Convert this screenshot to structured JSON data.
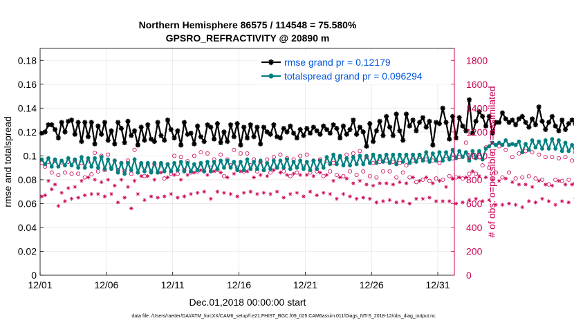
{
  "chart_data": {
    "type": "line",
    "title_line1": "Northern Hemisphere 86575 / 114548 = 75.580%",
    "title_line2": "GPSRO_REFRACTIVITY @ 20890 m",
    "xlabel": "Dec.01,2018 00:00:00 start",
    "ylabel_left": "rmse and totalspread",
    "ylabel_right": "# of obs: o=possible; ×=assimilated",
    "footnote": "data file: /Users/raeder/DAI/ATM_forcXX/CAM6_setup/f.e21.FHIST_BGC.f09_025.CAM6assim.011/Diags_NTrS_2018-12/obs_diag_output.nc",
    "xlim": [
      0,
      31.25
    ],
    "ylim_left": [
      0,
      0.19
    ],
    "ylim_right": [
      0,
      1900
    ],
    "x_ticks": [
      0,
      5,
      10,
      15,
      20,
      25,
      30
    ],
    "x_tick_labels": [
      "12/01",
      "12/06",
      "12/11",
      "12/16",
      "12/21",
      "12/26",
      "12/31"
    ],
    "y_ticks_left": [
      0,
      0.02,
      0.04,
      0.06,
      0.08,
      0.1,
      0.12,
      0.14,
      0.16,
      0.18
    ],
    "y_tick_labels_left": [
      "0",
      "0.02",
      "0.04",
      "0.06",
      "0.08",
      "0.1",
      "0.12",
      "0.14",
      "0.16",
      "0.18"
    ],
    "y_ticks_right": [
      0,
      200,
      400,
      600,
      800,
      1000,
      1200,
      1400,
      1600,
      1800
    ],
    "y_tick_labels_right": [
      "0",
      "200",
      "400",
      "600",
      "800",
      "1000",
      "1200",
      "1400",
      "1600",
      "1800"
    ],
    "x_step_days": 0.25,
    "series": [
      {
        "name": "rmse grand pr = 0.12179",
        "color": "#000000",
        "marker": "star",
        "values": [
          0.119,
          0.12,
          0.126,
          0.126,
          0.122,
          0.115,
          0.128,
          0.12,
          0.129,
          0.13,
          0.118,
          0.128,
          0.112,
          0.128,
          0.116,
          0.128,
          0.11,
          0.125,
          0.118,
          0.128,
          0.113,
          0.121,
          0.11,
          0.128,
          0.123,
          0.111,
          0.129,
          0.117,
          0.121,
          0.109,
          0.124,
          0.113,
          0.126,
          0.114,
          0.112,
          0.128,
          0.117,
          0.113,
          0.13,
          0.122,
          0.115,
          0.121,
          0.109,
          0.128,
          0.118,
          0.119,
          0.11,
          0.125,
          0.116,
          0.112,
          0.126,
          0.124,
          0.114,
          0.127,
          0.111,
          0.12,
          0.112,
          0.126,
          0.116,
          0.127,
          0.109,
          0.124,
          0.115,
          0.126,
          0.116,
          0.124,
          0.11,
          0.124,
          0.12,
          0.118,
          0.126,
          0.116,
          0.115,
          0.123,
          0.12,
          0.125,
          0.119,
          0.115,
          0.122,
          0.117,
          0.123,
          0.119,
          0.124,
          0.121,
          0.118,
          0.125,
          0.122,
          0.119,
          0.126,
          0.123,
          0.115,
          0.125,
          0.118,
          0.122,
          0.13,
          0.118,
          0.124,
          0.12,
          0.108,
          0.127,
          0.112,
          0.121,
          0.129,
          0.117,
          0.133,
          0.124,
          0.117,
          0.135,
          0.121,
          0.113,
          0.135,
          0.125,
          0.13,
          0.121,
          0.128,
          0.132,
          0.124,
          0.129,
          0.109,
          0.128,
          0.127,
          0.14,
          0.128,
          0.114,
          0.133,
          0.115,
          0.132,
          0.125,
          0.121,
          0.147,
          0.119,
          0.129,
          0.137,
          0.133,
          0.125,
          0.133,
          0.119,
          0.128,
          0.128,
          0.136,
          0.131,
          0.128,
          0.13,
          0.126,
          0.131,
          0.133,
          0.128,
          0.124,
          0.131,
          0.126,
          0.141,
          0.129,
          0.122,
          0.128,
          0.133,
          0.125,
          0.121,
          0.13,
          0.122,
          0.127,
          0.13,
          0.127,
          0.133,
          0.128,
          0.129,
          0.119,
          0.13,
          0.117,
          0.131,
          0.121,
          0.126,
          0.124,
          0.131,
          0.127,
          0.113,
          0.125,
          0.118,
          0.118,
          0.125,
          0.127,
          0.118,
          0.127,
          0.12,
          0.113,
          0.125,
          0.118,
          0.12
        ]
      },
      {
        "name": "totalspread grand pr = 0.096294",
        "color": "#008080",
        "marker": "circle",
        "values": [
          0.097,
          0.093,
          0.098,
          0.091,
          0.097,
          0.091,
          0.096,
          0.092,
          0.098,
          0.092,
          0.097,
          0.09,
          0.099,
          0.09,
          0.098,
          0.091,
          0.098,
          0.09,
          0.099,
          0.089,
          0.097,
          0.089,
          0.096,
          0.086,
          0.094,
          0.085,
          0.094,
          0.088,
          0.097,
          0.086,
          0.094,
          0.087,
          0.094,
          0.086,
          0.094,
          0.086,
          0.094,
          0.087,
          0.093,
          0.087,
          0.094,
          0.088,
          0.095,
          0.087,
          0.094,
          0.087,
          0.093,
          0.088,
          0.094,
          0.087,
          0.095,
          0.087,
          0.095,
          0.089,
          0.096,
          0.09,
          0.096,
          0.09,
          0.095,
          0.088,
          0.095,
          0.088,
          0.097,
          0.089,
          0.095,
          0.089,
          0.096,
          0.088,
          0.094,
          0.089,
          0.096,
          0.09,
          0.096,
          0.09,
          0.097,
          0.089,
          0.095,
          0.09,
          0.096,
          0.089,
          0.095,
          0.088,
          0.096,
          0.089,
          0.096,
          0.09,
          0.099,
          0.093,
          0.101,
          0.093,
          0.1,
          0.092,
          0.098,
          0.092,
          0.099,
          0.093,
          0.1,
          0.093,
          0.1,
          0.094,
          0.101,
          0.094,
          0.1,
          0.095,
          0.101,
          0.094,
          0.101,
          0.093,
          0.101,
          0.095,
          0.101,
          0.094,
          0.101,
          0.095,
          0.101,
          0.096,
          0.103,
          0.095,
          0.102,
          0.096,
          0.103,
          0.096,
          0.103,
          0.097,
          0.105,
          0.098,
          0.104,
          0.099,
          0.103,
          0.096,
          0.104,
          0.098,
          0.104,
          0.097,
          0.106,
          0.108,
          0.111,
          0.109,
          0.111,
          0.109,
          0.113,
          0.109,
          0.11,
          0.109,
          0.112,
          0.103,
          0.11,
          0.105,
          0.113,
          0.107,
          0.112,
          0.106,
          0.113,
          0.106,
          0.114,
          0.106,
          0.113,
          0.104,
          0.111,
          0.104,
          0.109,
          0.103,
          0.106,
          0.102,
          0.107,
          0.1,
          0.108,
          0.101,
          0.11,
          0.1,
          0.109,
          0.098,
          0.108,
          0.1,
          0.11,
          0.099,
          0.109,
          0.099,
          0.109,
          0.1,
          0.111,
          0.1,
          0.11,
          0.101,
          0.105,
          0.104,
          0.106,
          0.104,
          0.105,
          0.104,
          0.104,
          0.102,
          0.101
        ]
      },
      {
        "name": "obs possible",
        "color": "#cc0055",
        "marker": "open-circle",
        "axis": "right",
        "values": [
          940,
          910,
          950,
          860,
          955,
          840,
          945,
          860,
          950,
          850,
          960,
          850,
          940,
          820,
          955,
          845,
          1025,
          870,
          1000,
          880,
          1010,
          900,
          960,
          880,
          940,
          870,
          960,
          850,
          1050,
          860,
          920,
          830,
          920,
          870,
          930,
          860,
          920,
          810,
          930,
          850,
          1000,
          850,
          990,
          880,
          955,
          860,
          1000,
          870,
          1030,
          870,
          1020,
          900,
          970,
          880,
          1010,
          830,
          970,
          920,
          1050,
          900,
          1020,
          870,
          1020,
          920,
          970,
          870,
          950,
          880,
          970,
          860,
          990,
          900,
          1010,
          870,
          980,
          830,
          970,
          860,
          1000,
          910,
          1010,
          860,
          960,
          870,
          970,
          830,
          960,
          870,
          940,
          840,
          990,
          830,
          1010,
          870,
          1020,
          840,
          1040,
          870,
          990,
          830,
          940,
          820,
          950,
          870,
          960,
          870,
          950,
          820,
          940,
          860,
          920,
          820,
          960,
          780,
          990,
          800,
          970,
          790,
          960,
          810,
          940,
          800,
          1000,
          830,
          980,
          820,
          990,
          810,
          1110,
          850,
          1010,
          850,
          1020,
          920,
          1070,
          900,
          1040,
          860,
          1080,
          820,
          1050,
          860,
          990,
          810,
          1020,
          820,
          1040,
          830,
          1030,
          810,
          1010,
          800,
          990,
          760,
          990,
          800,
          980,
          790,
          990,
          800,
          960,
          770,
          1000,
          810,
          960,
          780,
          1010,
          800,
          950,
          770,
          940,
          790,
          990,
          810,
          940,
          780,
          960,
          790,
          920,
          780,
          880,
          770,
          900,
          760,
          930,
          740,
          880,
          730,
          930,
          740,
          870,
          740
        ]
      },
      {
        "name": "obs assimilated",
        "color": "#cc0055",
        "marker": "asterisk",
        "axis": "right",
        "values": [
          660,
          670,
          790,
          720,
          760,
          580,
          690,
          620,
          730,
          640,
          740,
          650,
          790,
          670,
          820,
          680,
          800,
          680,
          780,
          660,
          800,
          680,
          750,
          610,
          800,
          650,
          740,
          560,
          790,
          680,
          830,
          630,
          830,
          660,
          800,
          650,
          860,
          660,
          820,
          680,
          840,
          650,
          800,
          660,
          840,
          680,
          860,
          690,
          880,
          700,
          840,
          640,
          870,
          700,
          860,
          690,
          820,
          680,
          850,
          660,
          870,
          690,
          870,
          700,
          820,
          680,
          840,
          690,
          830,
          680,
          880,
          700,
          860,
          650,
          840,
          680,
          850,
          690,
          840,
          660,
          840,
          700,
          830,
          670,
          860,
          690,
          840,
          680,
          790,
          640,
          820,
          680,
          810,
          660,
          770,
          640,
          790,
          650,
          760,
          640,
          750,
          610,
          770,
          620,
          770,
          630,
          760,
          610,
          780,
          620,
          770,
          600,
          820,
          640,
          790,
          640,
          820,
          650,
          770,
          620,
          790,
          620,
          740,
          620,
          810,
          600,
          820,
          610,
          820,
          630,
          870,
          640,
          830,
          620,
          820,
          630,
          800,
          590,
          790,
          590,
          810,
          600,
          780,
          590,
          760,
          570,
          760,
          620,
          740,
          610,
          790,
          640,
          760,
          620,
          750,
          590,
          790,
          620,
          760,
          610,
          760,
          640,
          770,
          650,
          740,
          620,
          720,
          620,
          720,
          600,
          720,
          600,
          740,
          590,
          720,
          600,
          750,
          600,
          710,
          560,
          730,
          600,
          700,
          560,
          710,
          590,
          720,
          600
        ]
      }
    ]
  }
}
